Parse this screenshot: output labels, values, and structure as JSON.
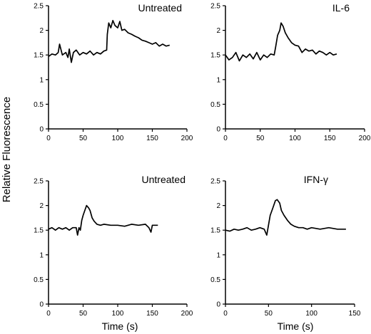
{
  "figure": {
    "y_axis_title": "Relative Fluorescence",
    "x_axis_title": "Time (s)"
  },
  "chart_data": [
    {
      "type": "line",
      "title": "Untreated",
      "xlabel": "",
      "ylabel": "Relative Fluorescence",
      "xlim": [
        0,
        200
      ],
      "ylim": [
        0,
        2.5
      ],
      "xticks": [
        "0",
        "50",
        "100",
        "150",
        "200"
      ],
      "yticks": [
        "0",
        "0.5",
        "1",
        "1.5",
        "2",
        "2.5"
      ],
      "grid": false,
      "series": [
        {
          "x": [
            0,
            5,
            10,
            14,
            16,
            20,
            25,
            28,
            30,
            33,
            36,
            40,
            45,
            50,
            55,
            60,
            65,
            70,
            75,
            80,
            84,
            85,
            87,
            90,
            93,
            96,
            100,
            103,
            106,
            110,
            115,
            120,
            125,
            130,
            135,
            140,
            145,
            150,
            155,
            160,
            165,
            170,
            175
          ],
          "y": [
            1.47,
            1.52,
            1.5,
            1.55,
            1.72,
            1.5,
            1.55,
            1.45,
            1.62,
            1.35,
            1.55,
            1.6,
            1.5,
            1.55,
            1.52,
            1.58,
            1.5,
            1.55,
            1.52,
            1.58,
            1.6,
            1.92,
            2.15,
            2.05,
            2.2,
            2.1,
            2.05,
            2.18,
            2.0,
            2.02,
            1.95,
            1.92,
            1.88,
            1.85,
            1.8,
            1.78,
            1.75,
            1.72,
            1.75,
            1.68,
            1.72,
            1.68,
            1.7
          ]
        }
      ]
    },
    {
      "type": "line",
      "title": "IL-6",
      "xlabel": "",
      "ylabel": "",
      "xlim": [
        0,
        200
      ],
      "ylim": [
        0,
        2.5
      ],
      "xticks": [
        "0",
        "50",
        "100",
        "150",
        "200"
      ],
      "yticks": [
        "0",
        "0.5",
        "1",
        "1.5",
        "2",
        "2.5"
      ],
      "grid": false,
      "series": [
        {
          "x": [
            0,
            5,
            10,
            15,
            20,
            25,
            30,
            35,
            40,
            45,
            50,
            55,
            60,
            65,
            70,
            72,
            75,
            78,
            80,
            83,
            86,
            90,
            95,
            100,
            105,
            110,
            115,
            120,
            125,
            130,
            135,
            140,
            145,
            150,
            155,
            160
          ],
          "y": [
            1.5,
            1.4,
            1.45,
            1.55,
            1.38,
            1.5,
            1.45,
            1.52,
            1.42,
            1.55,
            1.4,
            1.5,
            1.45,
            1.52,
            1.5,
            1.65,
            1.9,
            2.0,
            2.15,
            2.08,
            1.95,
            1.85,
            1.75,
            1.7,
            1.68,
            1.55,
            1.62,
            1.58,
            1.6,
            1.52,
            1.58,
            1.55,
            1.5,
            1.55,
            1.5,
            1.52
          ]
        }
      ]
    },
    {
      "type": "line",
      "title": "Untreated",
      "xlabel": "Time (s)",
      "ylabel": "",
      "xlim": [
        0,
        200
      ],
      "ylim": [
        0,
        2.5
      ],
      "xticks": [
        "0",
        "50",
        "100",
        "150",
        "200"
      ],
      "yticks": [
        "0",
        "0.5",
        "1",
        "1.5",
        "2",
        "2.5"
      ],
      "grid": false,
      "series": [
        {
          "x": [
            0,
            5,
            10,
            15,
            20,
            25,
            30,
            35,
            40,
            42,
            44,
            46,
            48,
            50,
            52,
            55,
            58,
            60,
            63,
            66,
            70,
            75,
            80,
            90,
            100,
            110,
            120,
            130,
            140,
            145,
            148,
            150,
            155,
            158
          ],
          "y": [
            1.52,
            1.55,
            1.5,
            1.55,
            1.52,
            1.55,
            1.5,
            1.55,
            1.55,
            1.4,
            1.55,
            1.5,
            1.7,
            1.8,
            1.88,
            2.0,
            1.95,
            1.9,
            1.75,
            1.68,
            1.62,
            1.6,
            1.62,
            1.6,
            1.6,
            1.58,
            1.62,
            1.6,
            1.62,
            1.55,
            1.46,
            1.6,
            1.6,
            1.6
          ]
        }
      ]
    },
    {
      "type": "line",
      "title": "IFN-γ",
      "xlabel": "Time (s)",
      "ylabel": "",
      "xlim": [
        0,
        150
      ],
      "ylim": [
        0,
        2.5
      ],
      "xticks": [
        "0",
        "50",
        "100",
        "150"
      ],
      "yticks": [
        "0",
        "0.5",
        "1",
        "1.5",
        "2",
        "2.5"
      ],
      "grid": false,
      "series": [
        {
          "x": [
            0,
            5,
            10,
            15,
            20,
            25,
            30,
            35,
            40,
            45,
            48,
            50,
            52,
            55,
            58,
            60,
            63,
            65,
            68,
            72,
            76,
            80,
            85,
            90,
            95,
            100,
            110,
            120,
            130,
            140
          ],
          "y": [
            1.5,
            1.48,
            1.52,
            1.5,
            1.52,
            1.55,
            1.5,
            1.52,
            1.55,
            1.52,
            1.4,
            1.6,
            1.8,
            1.95,
            2.1,
            2.12,
            2.05,
            1.9,
            1.8,
            1.7,
            1.62,
            1.58,
            1.55,
            1.55,
            1.52,
            1.55,
            1.52,
            1.55,
            1.52,
            1.52
          ]
        }
      ]
    }
  ]
}
